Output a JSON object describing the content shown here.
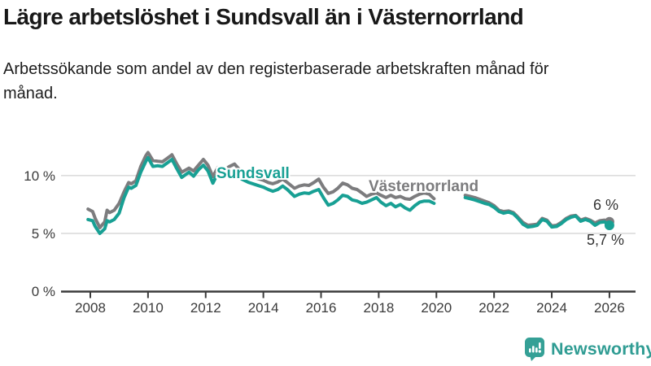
{
  "header": {
    "title": "Lägre arbetslöshet i Sundsvall än i Västernorrland",
    "subtitle": "Arbetssökande som andel av den registerbaserade arbetskraften månad för månad."
  },
  "chart_data": {
    "type": "line",
    "title": "Lägre arbetslöshet i Sundsvall än i Västernorrland",
    "subtitle": "Arbetssökande som andel av den registerbaserade arbetskraften månad för månad.",
    "unit": "%",
    "xlim": [
      2007,
      2026.9
    ],
    "ylim": [
      0,
      13
    ],
    "grid": "horizontal",
    "legend_position": "inline-labels",
    "x_ticks": [
      2008,
      2010,
      2012,
      2014,
      2016,
      2018,
      2020,
      2022,
      2024,
      2026
    ],
    "y_ticks": [
      {
        "value": 0,
        "label": "0 %"
      },
      {
        "value": 5,
        "label": "5 %"
      },
      {
        "value": 10,
        "label": "10 %"
      }
    ],
    "colors": {
      "sundsvall": "#18a094",
      "vasternorrland": "#7c7c7e",
      "grid": "#d9d9d9",
      "axis": "#3b3b3b"
    },
    "series": [
      {
        "name": "Sundsvall",
        "color": "#18a094",
        "end_label": "5,7 %",
        "end_value": 5.7,
        "points_segments": [
          [
            [
              2007.92,
              6.2
            ],
            [
              2008.08,
              6.1
            ],
            [
              2008.17,
              5.6
            ],
            [
              2008.33,
              5.0
            ],
            [
              2008.5,
              5.4
            ],
            [
              2008.58,
              6.1
            ],
            [
              2008.67,
              6.0
            ],
            [
              2008.83,
              6.2
            ],
            [
              2009.0,
              6.75
            ],
            [
              2009.17,
              8.1
            ],
            [
              2009.33,
              9.0
            ],
            [
              2009.42,
              8.9
            ],
            [
              2009.58,
              9.15
            ],
            [
              2009.75,
              10.3
            ],
            [
              2009.92,
              11.2
            ],
            [
              2010.0,
              11.55
            ],
            [
              2010.17,
              10.8
            ],
            [
              2010.33,
              10.85
            ],
            [
              2010.5,
              10.8
            ],
            [
              2010.67,
              11.1
            ],
            [
              2010.83,
              11.4
            ],
            [
              2011.0,
              10.6
            ],
            [
              2011.17,
              9.85
            ],
            [
              2011.42,
              10.3
            ],
            [
              2011.58,
              9.95
            ],
            [
              2011.75,
              10.5
            ],
            [
              2011.92,
              10.9
            ],
            [
              2012.08,
              10.4
            ],
            [
              2012.25,
              9.35
            ],
            [
              2012.42,
              10.2
            ],
            [
              2012.58,
              9.9
            ],
            [
              2012.83,
              10.1
            ],
            [
              2013.0,
              10.35
            ],
            [
              2013.25,
              9.7
            ],
            [
              2013.5,
              9.4
            ],
            [
              2013.75,
              9.2
            ],
            [
              2014.0,
              9.0
            ],
            [
              2014.17,
              8.8
            ],
            [
              2014.33,
              8.65
            ],
            [
              2014.5,
              8.8
            ],
            [
              2014.67,
              9.1
            ],
            [
              2014.83,
              8.8
            ],
            [
              2015.08,
              8.2
            ],
            [
              2015.25,
              8.4
            ],
            [
              2015.42,
              8.5
            ],
            [
              2015.58,
              8.45
            ],
            [
              2015.75,
              8.65
            ],
            [
              2015.92,
              8.8
            ],
            [
              2016.08,
              8.1
            ],
            [
              2016.25,
              7.45
            ],
            [
              2016.42,
              7.6
            ],
            [
              2016.58,
              7.9
            ],
            [
              2016.75,
              8.3
            ],
            [
              2016.92,
              8.2
            ],
            [
              2017.08,
              7.9
            ],
            [
              2017.25,
              7.8
            ],
            [
              2017.42,
              7.6
            ],
            [
              2017.58,
              7.7
            ],
            [
              2017.75,
              7.9
            ],
            [
              2017.92,
              8.1
            ],
            [
              2018.08,
              7.7
            ],
            [
              2018.25,
              7.4
            ],
            [
              2018.42,
              7.6
            ],
            [
              2018.58,
              7.3
            ],
            [
              2018.75,
              7.5
            ],
            [
              2018.92,
              7.2
            ],
            [
              2019.08,
              7.0
            ],
            [
              2019.25,
              7.4
            ],
            [
              2019.42,
              7.7
            ],
            [
              2019.58,
              7.8
            ],
            [
              2019.75,
              7.8
            ],
            [
              2019.92,
              7.6
            ]
          ],
          [
            [
              2021.0,
              8.1
            ],
            [
              2021.17,
              8.0
            ],
            [
              2021.33,
              7.9
            ],
            [
              2021.5,
              7.75
            ],
            [
              2021.67,
              7.6
            ],
            [
              2021.83,
              7.5
            ],
            [
              2022.0,
              7.25
            ],
            [
              2022.17,
              6.9
            ],
            [
              2022.33,
              6.75
            ],
            [
              2022.5,
              6.85
            ],
            [
              2022.67,
              6.7
            ],
            [
              2022.83,
              6.3
            ],
            [
              2023.0,
              5.8
            ],
            [
              2023.17,
              5.55
            ],
            [
              2023.33,
              5.6
            ],
            [
              2023.5,
              5.7
            ],
            [
              2023.67,
              6.2
            ],
            [
              2023.83,
              6.05
            ],
            [
              2024.0,
              5.55
            ],
            [
              2024.17,
              5.6
            ],
            [
              2024.33,
              5.85
            ],
            [
              2024.5,
              6.2
            ],
            [
              2024.67,
              6.4
            ],
            [
              2024.83,
              6.5
            ],
            [
              2025.0,
              6.05
            ],
            [
              2025.17,
              6.2
            ],
            [
              2025.33,
              6.05
            ],
            [
              2025.5,
              5.7
            ],
            [
              2025.67,
              5.95
            ],
            [
              2025.83,
              6.0
            ],
            [
              2026.0,
              5.7
            ]
          ]
        ]
      },
      {
        "name": "Västernorrland",
        "color": "#7c7c7e",
        "end_label": "6 %",
        "end_value": 6.0,
        "points_segments": [
          [
            [
              2007.92,
              7.1
            ],
            [
              2008.08,
              6.9
            ],
            [
              2008.17,
              6.3
            ],
            [
              2008.33,
              5.5
            ],
            [
              2008.5,
              6.0
            ],
            [
              2008.58,
              7.0
            ],
            [
              2008.67,
              6.8
            ],
            [
              2008.83,
              7.0
            ],
            [
              2009.0,
              7.6
            ],
            [
              2009.17,
              8.6
            ],
            [
              2009.33,
              9.4
            ],
            [
              2009.42,
              9.3
            ],
            [
              2009.58,
              9.55
            ],
            [
              2009.75,
              10.8
            ],
            [
              2009.92,
              11.7
            ],
            [
              2010.0,
              12.0
            ],
            [
              2010.17,
              11.3
            ],
            [
              2010.33,
              11.25
            ],
            [
              2010.5,
              11.2
            ],
            [
              2010.67,
              11.5
            ],
            [
              2010.83,
              11.8
            ],
            [
              2011.0,
              11.0
            ],
            [
              2011.17,
              10.3
            ],
            [
              2011.42,
              10.65
            ],
            [
              2011.58,
              10.4
            ],
            [
              2011.75,
              10.9
            ],
            [
              2011.92,
              11.4
            ],
            [
              2012.08,
              10.9
            ],
            [
              2012.25,
              9.9
            ],
            [
              2012.42,
              10.7
            ],
            [
              2012.58,
              10.4
            ],
            [
              2012.83,
              10.8
            ],
            [
              2013.0,
              11.0
            ],
            [
              2013.25,
              10.3
            ],
            [
              2013.5,
              10.0
            ],
            [
              2013.75,
              9.8
            ],
            [
              2014.0,
              9.6
            ],
            [
              2014.17,
              9.4
            ],
            [
              2014.33,
              9.3
            ],
            [
              2014.5,
              9.45
            ],
            [
              2014.67,
              9.7
            ],
            [
              2014.83,
              9.4
            ],
            [
              2015.08,
              8.9
            ],
            [
              2015.25,
              9.1
            ],
            [
              2015.42,
              9.2
            ],
            [
              2015.58,
              9.15
            ],
            [
              2015.75,
              9.4
            ],
            [
              2015.92,
              9.7
            ],
            [
              2016.08,
              9.0
            ],
            [
              2016.25,
              8.45
            ],
            [
              2016.42,
              8.6
            ],
            [
              2016.58,
              8.9
            ],
            [
              2016.75,
              9.35
            ],
            [
              2016.92,
              9.2
            ],
            [
              2017.08,
              8.9
            ],
            [
              2017.25,
              8.8
            ],
            [
              2017.42,
              8.5
            ],
            [
              2017.58,
              8.2
            ],
            [
              2017.75,
              8.4
            ],
            [
              2017.92,
              8.5
            ],
            [
              2018.08,
              8.3
            ],
            [
              2018.25,
              8.1
            ],
            [
              2018.42,
              8.3
            ],
            [
              2018.58,
              8.1
            ],
            [
              2018.75,
              8.2
            ],
            [
              2018.92,
              8.0
            ],
            [
              2019.08,
              7.95
            ],
            [
              2019.25,
              8.2
            ],
            [
              2019.42,
              8.4
            ],
            [
              2019.58,
              8.5
            ],
            [
              2019.75,
              8.4
            ],
            [
              2019.92,
              8.0
            ]
          ],
          [
            [
              2021.0,
              8.3
            ],
            [
              2021.17,
              8.2
            ],
            [
              2021.33,
              8.1
            ],
            [
              2021.5,
              7.95
            ],
            [
              2021.67,
              7.8
            ],
            [
              2021.83,
              7.65
            ],
            [
              2022.0,
              7.4
            ],
            [
              2022.17,
              7.0
            ],
            [
              2022.33,
              6.9
            ],
            [
              2022.5,
              6.95
            ],
            [
              2022.67,
              6.8
            ],
            [
              2022.83,
              6.4
            ],
            [
              2023.0,
              5.95
            ],
            [
              2023.17,
              5.7
            ],
            [
              2023.33,
              5.75
            ],
            [
              2023.5,
              5.8
            ],
            [
              2023.67,
              6.3
            ],
            [
              2023.83,
              6.15
            ],
            [
              2024.0,
              5.65
            ],
            [
              2024.17,
              5.7
            ],
            [
              2024.33,
              5.95
            ],
            [
              2024.5,
              6.3
            ],
            [
              2024.67,
              6.5
            ],
            [
              2024.83,
              6.55
            ],
            [
              2025.0,
              6.15
            ],
            [
              2025.17,
              6.3
            ],
            [
              2025.33,
              6.15
            ],
            [
              2025.5,
              5.9
            ],
            [
              2025.67,
              6.1
            ],
            [
              2025.83,
              6.15
            ],
            [
              2026.0,
              6.0
            ]
          ]
        ]
      }
    ]
  },
  "footer": {
    "brand": "Newsworthy",
    "brand_color": "#2f9c93"
  }
}
